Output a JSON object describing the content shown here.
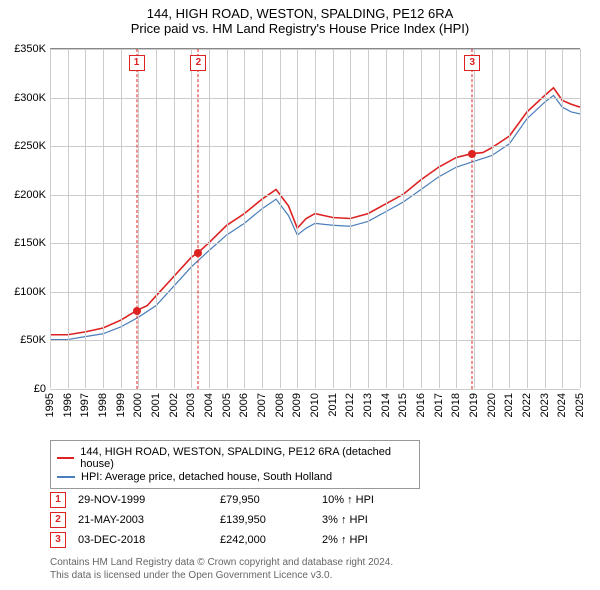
{
  "title": "144, HIGH ROAD, WESTON, SPALDING, PE12 6RA",
  "subtitle": "Price paid vs. HM Land Registry's House Price Index (HPI)",
  "chart": {
    "type": "line",
    "background_color": "#ffffff",
    "grid_color": "#cccccc",
    "title_fontsize": 13,
    "label_fontsize": 11,
    "xlim": [
      1995,
      2025
    ],
    "ylim": [
      0,
      350000
    ],
    "ytick_step": 50000,
    "ytick_labels": [
      "£0",
      "£50K",
      "£100K",
      "£150K",
      "£200K",
      "£250K",
      "£300K",
      "£350K"
    ],
    "xtick_labels": [
      "1995",
      "1996",
      "1997",
      "1998",
      "1999",
      "2000",
      "2001",
      "2002",
      "2003",
      "2004",
      "2005",
      "2006",
      "2007",
      "2008",
      "2009",
      "2010",
      "2011",
      "2012",
      "2013",
      "2014",
      "2015",
      "2016",
      "2017",
      "2018",
      "2019",
      "2020",
      "2021",
      "2022",
      "2023",
      "2024",
      "2025"
    ],
    "series": [
      {
        "name": "144, HIGH ROAD, WESTON, SPALDING, PE12 6RA (detached house)",
        "color": "#dd2222",
        "line_width": 1.6,
        "data": [
          [
            1995,
            55000
          ],
          [
            1996,
            55000
          ],
          [
            1997,
            58000
          ],
          [
            1998,
            62000
          ],
          [
            1999,
            70000
          ],
          [
            1999.9,
            79950
          ],
          [
            2000.5,
            85000
          ],
          [
            2001,
            95000
          ],
          [
            2002,
            115000
          ],
          [
            2003,
            135000
          ],
          [
            2003.4,
            139950
          ],
          [
            2004,
            150000
          ],
          [
            2005,
            168000
          ],
          [
            2006,
            180000
          ],
          [
            2007,
            195000
          ],
          [
            2007.8,
            205000
          ],
          [
            2008.5,
            188000
          ],
          [
            2009,
            165000
          ],
          [
            2009.5,
            175000
          ],
          [
            2010,
            180000
          ],
          [
            2011,
            176000
          ],
          [
            2012,
            175000
          ],
          [
            2013,
            180000
          ],
          [
            2014,
            190000
          ],
          [
            2015,
            200000
          ],
          [
            2016,
            215000
          ],
          [
            2017,
            228000
          ],
          [
            2018,
            238000
          ],
          [
            2018.9,
            242000
          ],
          [
            2019.5,
            243000
          ],
          [
            2020,
            248000
          ],
          [
            2021,
            260000
          ],
          [
            2022,
            285000
          ],
          [
            2023,
            302000
          ],
          [
            2023.5,
            310000
          ],
          [
            2024,
            297000
          ],
          [
            2024.5,
            293000
          ],
          [
            2025,
            290000
          ]
        ]
      },
      {
        "name": "HPI: Average price, detached house, South Holland",
        "color": "#4a7ebb",
        "line_width": 1.2,
        "data": [
          [
            1995,
            50000
          ],
          [
            1996,
            50000
          ],
          [
            1997,
            53000
          ],
          [
            1998,
            56000
          ],
          [
            1999,
            63000
          ],
          [
            2000,
            73000
          ],
          [
            2001,
            85000
          ],
          [
            2002,
            105000
          ],
          [
            2003,
            125000
          ],
          [
            2004,
            142000
          ],
          [
            2005,
            158000
          ],
          [
            2006,
            170000
          ],
          [
            2007,
            185000
          ],
          [
            2007.8,
            195000
          ],
          [
            2008.5,
            178000
          ],
          [
            2009,
            158000
          ],
          [
            2009.5,
            165000
          ],
          [
            2010,
            170000
          ],
          [
            2011,
            168000
          ],
          [
            2012,
            167000
          ],
          [
            2013,
            172000
          ],
          [
            2014,
            182000
          ],
          [
            2015,
            192000
          ],
          [
            2016,
            205000
          ],
          [
            2017,
            218000
          ],
          [
            2018,
            228000
          ],
          [
            2019,
            234000
          ],
          [
            2020,
            240000
          ],
          [
            2021,
            252000
          ],
          [
            2022,
            278000
          ],
          [
            2023,
            295000
          ],
          [
            2023.5,
            302000
          ],
          [
            2024,
            290000
          ],
          [
            2024.5,
            285000
          ],
          [
            2025,
            283000
          ]
        ]
      }
    ],
    "markers": [
      {
        "n": "1",
        "x": 1999.9,
        "y": 79950
      },
      {
        "n": "2",
        "x": 2003.4,
        "y": 139950
      },
      {
        "n": "3",
        "x": 2018.9,
        "y": 242000
      }
    ],
    "marker_color": "#dd2222"
  },
  "legend": {
    "border_color": "#999999",
    "fontsize": 11
  },
  "sales": [
    {
      "n": "1",
      "date": "29-NOV-1999",
      "price": "£79,950",
      "hpi": "10% ↑ HPI"
    },
    {
      "n": "2",
      "date": "21-MAY-2003",
      "price": "£139,950",
      "hpi": "3% ↑ HPI"
    },
    {
      "n": "3",
      "date": "03-DEC-2018",
      "price": "£242,000",
      "hpi": "2% ↑ HPI"
    }
  ],
  "footer_line1": "Contains HM Land Registry data © Crown copyright and database right 2024.",
  "footer_line2": "This data is licensed under the Open Government Licence v3.0."
}
